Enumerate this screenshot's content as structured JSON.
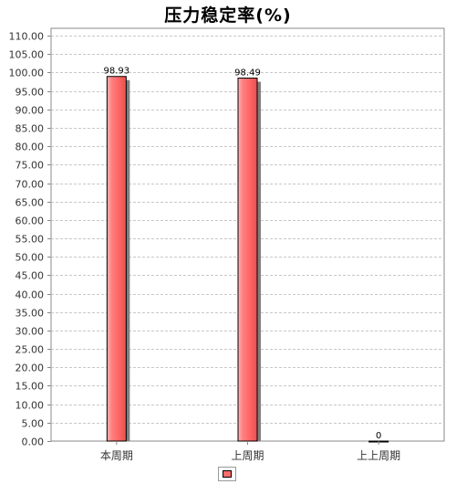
{
  "chart_data": {
    "type": "bar",
    "title": "压力稳定率(%)",
    "categories": [
      "本周期",
      "上周期",
      "上上周期"
    ],
    "series": [
      {
        "values": [
          98.93,
          98.49,
          0
        ],
        "color": "#ff6c6c"
      }
    ],
    "data_labels": [
      "98.93",
      "98.49",
      "0"
    ],
    "ylim": [
      0,
      112
    ],
    "yticks": [
      "0.00",
      "5.00",
      "10.00",
      "15.00",
      "20.00",
      "25.00",
      "30.00",
      "35.00",
      "40.00",
      "45.00",
      "50.00",
      "55.00",
      "60.00",
      "65.00",
      "70.00",
      "75.00",
      "80.00",
      "85.00",
      "90.00",
      "95.00",
      "100.00",
      "105.00",
      "110.00"
    ],
    "ytick_values": [
      0,
      5,
      10,
      15,
      20,
      25,
      30,
      35,
      40,
      45,
      50,
      55,
      60,
      65,
      70,
      75,
      80,
      85,
      90,
      95,
      100,
      105,
      110
    ],
    "grid": true,
    "legend_placement": "bottom-center"
  }
}
